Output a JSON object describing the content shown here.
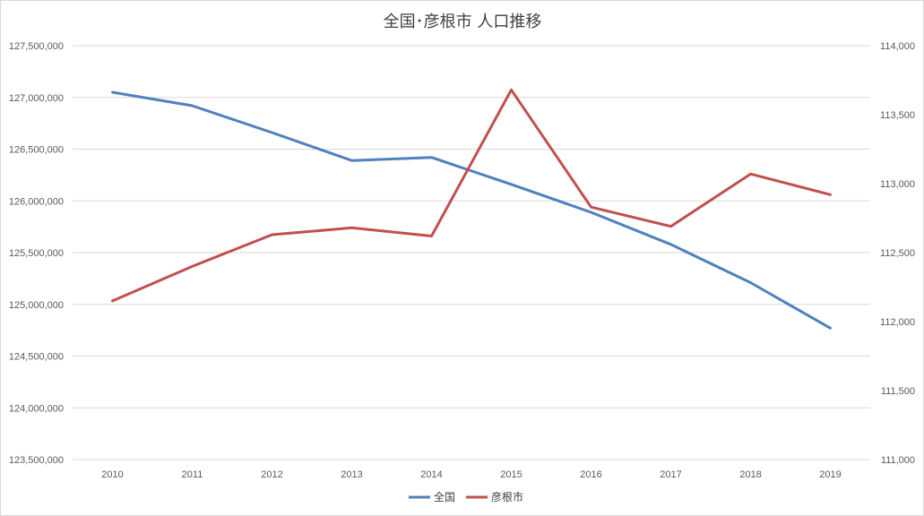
{
  "chart_data": {
    "type": "line",
    "title": "全国･彦根市 人口推移",
    "categories": [
      "2010",
      "2011",
      "2012",
      "2013",
      "2014",
      "2015",
      "2016",
      "2017",
      "2018",
      "2019"
    ],
    "y_left": {
      "min": 123500000,
      "max": 127500000,
      "step": 500000,
      "tick_labels": [
        "127,500,000",
        "127,000,000",
        "126,500,000",
        "126,000,000",
        "125,500,000",
        "125,000,000",
        "124,500,000",
        "124,000,000",
        "123,500,000"
      ]
    },
    "y_right": {
      "min": 111000,
      "max": 114000,
      "step": 500,
      "tick_labels": [
        "114,000",
        "113,500",
        "113,000",
        "112,500",
        "112,000",
        "111,500",
        "111,000"
      ]
    },
    "series": [
      {
        "name": "全国",
        "axis": "left",
        "color": "#4f81bd",
        "values": [
          127050000,
          126920000,
          126660000,
          126390000,
          126420000,
          126160000,
          125890000,
          125580000,
          125210000,
          124770000
        ]
      },
      {
        "name": "彦根市",
        "axis": "right",
        "color": "#c0504d",
        "values": [
          112150,
          112400,
          112630,
          112680,
          112620,
          113680,
          112830,
          112690,
          113070,
          112920
        ]
      }
    ],
    "grid": true,
    "legend_position": "bottom"
  }
}
